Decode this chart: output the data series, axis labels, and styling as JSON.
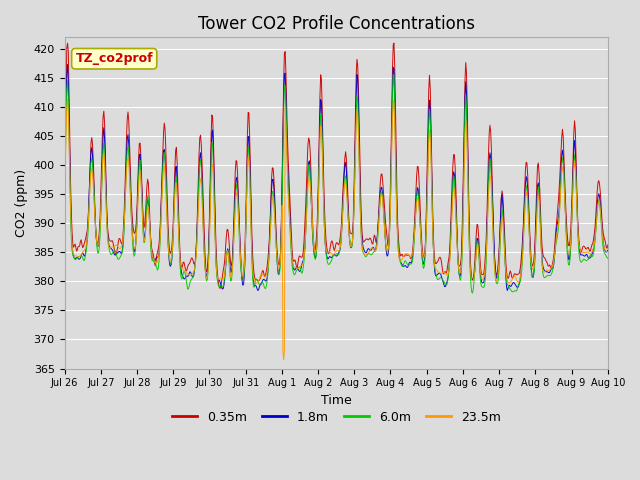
{
  "title": "Tower CO2 Profile Concentrations",
  "xlabel": "Time",
  "ylabel": "CO2 (ppm)",
  "ylim": [
    365,
    422
  ],
  "yticks": [
    365,
    370,
    375,
    380,
    385,
    390,
    395,
    400,
    405,
    410,
    415,
    420
  ],
  "series_colors": [
    "#cc0000",
    "#0000cc",
    "#00cc00",
    "#ff9900"
  ],
  "series_labels": [
    "0.35m",
    "1.8m",
    "6.0m",
    "23.5m"
  ],
  "background_color": "#dcdcdc",
  "grid_color": "#ffffff",
  "title_fontsize": 12,
  "axis_fontsize": 9,
  "tick_fontsize": 8,
  "legend_box_facecolor": "#ffffcc",
  "legend_box_edgecolor": "#aaaa00",
  "legend_text_color": "#cc0000",
  "annotation_text": "TZ_co2prof",
  "date_labels": [
    "Jul 26",
    "Jul 27",
    "Jul 28",
    "Jul 29",
    "Jul 30",
    "Jul 31",
    "Aug 1",
    "Aug 2",
    "Aug 3",
    "Aug 4",
    "Aug 5",
    "Aug 6",
    "Aug 7",
    "Aug 8",
    "Aug 9",
    "Aug 10"
  ],
  "seed": 12345
}
